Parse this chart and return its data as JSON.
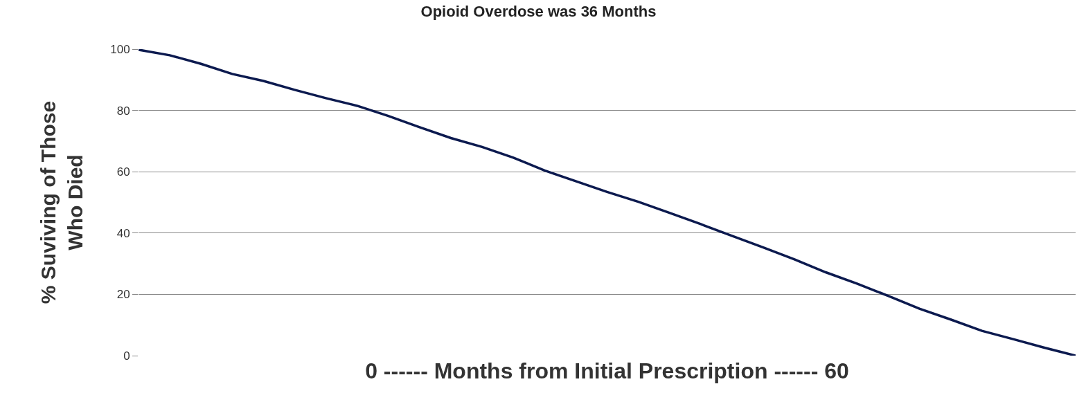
{
  "chart_data": {
    "type": "line",
    "title": "Opioid Overdose was 36 Months",
    "xlabel": "0 ------ Months from Initial Prescription ------ 60",
    "ylabel": "% Suviving of Those\nWho Died",
    "categories": [
      null,
      null,
      null,
      null,
      null,
      null,
      null,
      null,
      null,
      null,
      null,
      null,
      null,
      null,
      null,
      null,
      null,
      null,
      null,
      null,
      null,
      null,
      null,
      null,
      null,
      null,
      null,
      null,
      null,
      null,
      null
    ],
    "series": [
      {
        "color": "#0c1a4f",
        "values": [
          99.8,
          98.0,
          95.2,
          91.9,
          89.6,
          86.7,
          84.0,
          81.5,
          78.2,
          74.5,
          71.0,
          68.1,
          64.6,
          60.4,
          56.9,
          53.4,
          50.2,
          46.6,
          42.9,
          39.1,
          35.3,
          31.4,
          27.2,
          23.5,
          19.5,
          15.3,
          11.8,
          8.1,
          5.4,
          2.6,
          0
        ]
      }
    ],
    "ylim": [
      0,
      100
    ],
    "yticks": [
      0,
      20,
      40,
      60,
      80,
      100
    ],
    "grid": "y",
    "tick_labels": "y",
    "marker": "none",
    "line_style": "solid"
  }
}
